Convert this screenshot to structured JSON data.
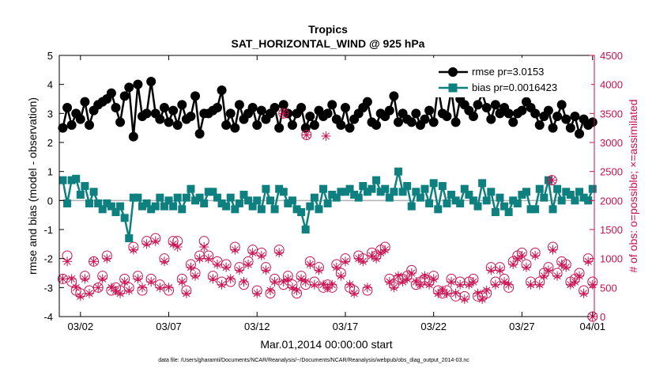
{
  "chart_data": {
    "type": "line",
    "title_line1": "Tropics",
    "title_line2": "SAT_HORIZONTAL_WIND @ 925 hPa",
    "xlabel": "Mar.01,2014 00:00:00 start",
    "ylabel_left": "rmse and bias (model - observation)",
    "ylabel_right": "# of obs: o=possible; ×=assimilated",
    "xlim": [
      0.8,
      31.1
    ],
    "ylim_left": [
      -4,
      5
    ],
    "ylim_right": [
      0,
      4500
    ],
    "x_ticks": [
      2,
      7,
      12,
      17,
      22,
      27,
      31
    ],
    "x_tick_labels": [
      "03/02",
      "03/07",
      "03/12",
      "03/17",
      "03/22",
      "03/27",
      "04/01"
    ],
    "y_left_ticks": [
      -4,
      -3,
      -2,
      -1,
      0,
      1,
      2,
      3,
      4,
      5
    ],
    "y_left_tick_labels": [
      "-4",
      "-3",
      "-2",
      "-1",
      "0",
      "1",
      "2",
      "3",
      "4",
      "5"
    ],
    "y_right_ticks": [
      0,
      500,
      1000,
      1500,
      2000,
      2500,
      3000,
      3500,
      4000,
      4500
    ],
    "y_right_tick_labels": [
      "0",
      "500",
      "1000",
      "1500",
      "2000",
      "2500",
      "3000",
      "3500",
      "4000",
      "4500"
    ],
    "colors": {
      "rmse": "#000000",
      "bias": "#0f8080",
      "obs": "#c8104f",
      "zero": "#b0b0b0"
    },
    "legend": [
      {
        "name": "rmse pr=3.0153",
        "series": "rmse"
      },
      {
        "name": "bias pr=0.0016423",
        "series": "bias"
      }
    ],
    "legend_position": "top-right",
    "footer": "data file: /Users/gharamti/Documents/NCAR/Reanalysis/~/Documents/NCAR/Reanalysis/webpub/obs_diag_output_2014-03.nc",
    "series": [
      {
        "name": "rmse",
        "axis": "left",
        "marker": "circle",
        "x": [
          1.0,
          1.25,
          1.5,
          1.75,
          2.0,
          2.25,
          2.5,
          2.75,
          3.0,
          3.25,
          3.5,
          3.75,
          4.0,
          4.25,
          4.5,
          4.75,
          5.0,
          5.25,
          5.5,
          5.75,
          6.0,
          6.25,
          6.5,
          6.75,
          7.0,
          7.25,
          7.5,
          7.75,
          8.0,
          8.25,
          8.5,
          8.75,
          9.0,
          9.25,
          9.5,
          9.75,
          10.0,
          10.25,
          10.5,
          10.75,
          11.0,
          11.25,
          11.5,
          11.75,
          12.0,
          12.25,
          12.5,
          12.75,
          13.0,
          13.25,
          13.5,
          13.75,
          14.0,
          14.25,
          14.5,
          14.75,
          15.0,
          15.25,
          15.5,
          15.75,
          16.0,
          16.25,
          16.5,
          16.75,
          17.0,
          17.25,
          17.5,
          17.75,
          18.0,
          18.25,
          18.5,
          18.75,
          19.0,
          19.25,
          19.5,
          19.75,
          20.0,
          20.25,
          20.5,
          20.75,
          21.0,
          21.25,
          21.5,
          21.75,
          22.0,
          22.25,
          22.5,
          22.75,
          23.0,
          23.25,
          23.5,
          23.75,
          24.0,
          24.25,
          24.5,
          24.75,
          25.0,
          25.25,
          25.5,
          25.75,
          26.0,
          26.25,
          26.5,
          26.75,
          27.0,
          27.25,
          27.5,
          27.75,
          28.0,
          28.25,
          28.5,
          28.75,
          29.0,
          29.25,
          29.5,
          29.75,
          30.0,
          30.25,
          30.5,
          30.75,
          31.0
        ],
        "values": [
          2.5,
          3.2,
          2.6,
          3.0,
          2.8,
          3.4,
          2.6,
          3.1,
          3.3,
          3.4,
          3.5,
          3.7,
          3.2,
          2.7,
          3.6,
          3.9,
          2.2,
          4.0,
          2.9,
          3.0,
          4.1,
          3.0,
          2.8,
          3.2,
          2.7,
          3.1,
          2.6,
          3.3,
          2.8,
          2.9,
          3.6,
          2.3,
          3.0,
          3.0,
          3.1,
          3.2,
          3.8,
          2.6,
          3.0,
          2.5,
          3.3,
          2.8,
          3.0,
          3.2,
          2.6,
          3.1,
          2.8,
          3.0,
          3.2,
          2.5,
          3.3,
          3.0,
          2.6,
          3.0,
          3.2,
          2.5,
          2.9,
          2.6,
          3.1,
          2.9,
          3.0,
          3.3,
          2.8,
          2.6,
          3.2,
          2.5,
          2.8,
          3.0,
          3.2,
          3.4,
          2.7,
          2.6,
          3.0,
          2.9,
          3.1,
          3.6,
          2.7,
          3.0,
          2.8,
          2.7,
          3.0,
          2.6,
          2.8,
          3.1,
          2.7,
          3.9,
          3.0,
          2.9,
          3.8,
          2.7,
          3.5,
          3.3,
          3.1,
          2.9,
          3.3,
          3.7,
          3.2,
          2.8,
          3.3,
          3.0,
          3.2,
          3.0,
          2.7,
          3.0,
          3.1,
          3.4,
          3.2,
          3.0,
          2.6,
          2.9,
          3.1,
          2.5,
          2.9,
          3.3,
          2.8,
          2.5,
          2.9,
          2.3,
          2.8,
          2.6,
          2.7
        ]
      },
      {
        "name": "bias",
        "axis": "left",
        "marker": "square",
        "x": [
          1.0,
          1.25,
          1.5,
          1.75,
          2.0,
          2.25,
          2.5,
          2.75,
          3.0,
          3.25,
          3.5,
          3.75,
          4.0,
          4.25,
          4.5,
          4.75,
          5.0,
          5.25,
          5.5,
          5.75,
          6.0,
          6.25,
          6.5,
          6.75,
          7.0,
          7.25,
          7.5,
          7.75,
          8.0,
          8.25,
          8.5,
          8.75,
          9.0,
          9.25,
          9.5,
          9.75,
          10.0,
          10.25,
          10.5,
          10.75,
          11.0,
          11.25,
          11.5,
          11.75,
          12.0,
          12.25,
          12.5,
          12.75,
          13.0,
          13.25,
          13.5,
          13.75,
          14.0,
          14.25,
          14.5,
          14.75,
          15.0,
          15.25,
          15.5,
          15.75,
          16.0,
          16.25,
          16.5,
          16.75,
          17.0,
          17.25,
          17.5,
          17.75,
          18.0,
          18.25,
          18.5,
          18.75,
          19.0,
          19.25,
          19.5,
          19.75,
          20.0,
          20.25,
          20.5,
          20.75,
          21.0,
          21.25,
          21.5,
          21.75,
          22.0,
          22.25,
          22.5,
          22.75,
          23.0,
          23.25,
          23.5,
          23.75,
          24.0,
          24.25,
          24.5,
          24.75,
          25.0,
          25.25,
          25.5,
          25.75,
          26.0,
          26.25,
          26.5,
          26.75,
          27.0,
          27.25,
          27.5,
          27.75,
          28.0,
          28.25,
          28.5,
          28.75,
          29.0,
          29.25,
          29.5,
          29.75,
          30.0,
          30.25,
          30.5,
          30.75,
          31.0
        ],
        "values": [
          0.7,
          -0.1,
          0.7,
          0.75,
          0.2,
          0.5,
          -0.1,
          0.3,
          -0.1,
          -0.3,
          -0.1,
          -0.2,
          -0.4,
          -0.2,
          -0.6,
          -1.3,
          0.1,
          0.1,
          -0.2,
          -0.1,
          -0.3,
          -0.2,
          0.1,
          -0.2,
          0.0,
          -0.2,
          0.1,
          -0.3,
          0.1,
          0.4,
          0.0,
          0.1,
          -0.1,
          0.3,
          0.3,
          0.1,
          -0.1,
          -0.2,
          0.1,
          -0.3,
          -0.1,
          0.2,
          0.0,
          -0.2,
          0.0,
          -0.3,
          0.4,
          0.0,
          -0.3,
          0.4,
          0.3,
          -0.1,
          0.0,
          -0.3,
          -0.4,
          -1.0,
          -0.2,
          0.1,
          -0.3,
          0.4,
          -0.1,
          0.2,
          0.1,
          0.3,
          0.3,
          0.4,
          0.2,
          0.1,
          0.5,
          0.3,
          0.4,
          0.7,
          0.3,
          0.4,
          0.1,
          0.3,
          1.0,
          0.3,
          0.5,
          -0.2,
          0.3,
          0.1,
          0.4,
          -0.1,
          0.6,
          -0.3,
          0.5,
          -0.1,
          0.2,
          0.0,
          -0.1,
          0.4,
          0.2,
          0.0,
          -0.2,
          0.6,
          0.0,
          0.3,
          -0.4,
          0.1,
          -0.2,
          -0.4,
          0.0,
          -0.1,
          0.2,
          0.3,
          -0.3,
          -0.3,
          0.4,
          0.1,
          0.7,
          -0.3,
          0.4,
          0.0,
          0.3,
          0.2,
          0.0,
          0.3,
          0.1,
          0.0,
          0.4
        ]
      },
      {
        "name": "possible obs",
        "axis": "right",
        "marker": "open-circle",
        "x": [
          1.0,
          1.25,
          1.5,
          1.75,
          2.0,
          2.25,
          2.5,
          2.75,
          3.0,
          3.25,
          3.5,
          3.75,
          4.0,
          4.25,
          4.5,
          4.75,
          5.0,
          5.25,
          5.5,
          5.75,
          6.0,
          6.25,
          6.5,
          6.75,
          7.0,
          7.25,
          7.5,
          7.75,
          8.0,
          8.25,
          8.5,
          8.75,
          9.0,
          9.25,
          9.5,
          9.75,
          10.0,
          10.25,
          10.5,
          10.75,
          11.0,
          11.25,
          11.5,
          11.75,
          12.0,
          12.25,
          12.5,
          12.75,
          13.0,
          13.25,
          13.5,
          13.75,
          14.0,
          14.25,
          14.5,
          14.75,
          15.0,
          15.25,
          15.5,
          15.75,
          16.0,
          16.25,
          16.5,
          16.75,
          17.0,
          17.25,
          17.5,
          17.75,
          18.0,
          18.25,
          18.5,
          18.75,
          19.0,
          19.25,
          19.5,
          19.75,
          20.0,
          20.25,
          20.5,
          20.75,
          21.0,
          21.25,
          21.5,
          21.75,
          22.0,
          22.25,
          22.5,
          22.75,
          23.0,
          23.25,
          23.5,
          23.75,
          24.0,
          24.25,
          24.5,
          24.75,
          25.0,
          25.25,
          25.5,
          25.75,
          26.0,
          26.25,
          26.5,
          26.75,
          27.0,
          27.25,
          27.5,
          27.75,
          28.0,
          28.25,
          28.5,
          28.75,
          29.0,
          29.25,
          29.5,
          29.75,
          30.0,
          30.25,
          30.5,
          30.75,
          31.0
        ],
        "values": [
          650,
          1050,
          600,
          450,
          400,
          700,
          450,
          950,
          500,
          700,
          1050,
          450,
          500,
          450,
          650,
          500,
          1200,
          700,
          450,
          1300,
          650,
          1350,
          550,
          1000,
          450,
          1300,
          1300,
          650,
          450,
          900,
          750,
          1050,
          1300,
          1050,
          700,
          950,
          600,
          900,
          600,
          1200,
          850,
          550,
          950,
          1150,
          450,
          1100,
          850,
          400,
          650,
          1150,
          550,
          700,
          550,
          400,
          700,
          550,
          950,
          600,
          850,
          500,
          550,
          500,
          900,
          750,
          1000,
          500,
          450,
          1050,
          1000,
          450,
          1100,
          1050,
          1150,
          1200,
          650,
          550,
          650,
          650,
          700,
          800,
          550,
          600,
          650,
          600,
          700,
          450,
          400,
          450,
          650,
          350,
          600,
          350,
          600,
          650,
          350,
          350,
          400,
          850,
          600,
          850,
          650,
          500,
          950,
          1050,
          1100,
          900,
          600,
          1100,
          600,
          750,
          850,
          1200,
          750,
          950,
          900,
          600,
          650,
          750,
          450,
          1000,
          600
        ]
      },
      {
        "name": "assimilated obs",
        "axis": "right",
        "marker": "asterisk",
        "x": [
          1.0,
          1.25,
          1.5,
          1.75,
          2.0,
          2.25,
          2.5,
          2.75,
          3.0,
          3.25,
          3.5,
          3.75,
          4.0,
          4.25,
          4.5,
          4.75,
          5.0,
          5.25,
          5.5,
          5.75,
          6.0,
          6.25,
          6.5,
          6.75,
          7.0,
          7.25,
          7.5,
          7.75,
          8.0,
          8.25,
          8.5,
          8.75,
          9.0,
          9.25,
          9.5,
          9.75,
          10.0,
          10.25,
          10.5,
          10.75,
          11.0,
          11.25,
          11.5,
          11.75,
          12.0,
          12.25,
          12.5,
          12.75,
          13.0,
          13.25,
          13.5,
          13.75,
          14.0,
          14.25,
          14.5,
          14.75,
          15.0,
          15.25,
          15.5,
          15.75,
          16.0,
          16.25,
          16.5,
          16.75,
          17.0,
          17.25,
          17.5,
          17.75,
          18.0,
          18.25,
          18.5,
          18.75,
          19.0,
          19.25,
          19.5,
          19.75,
          20.0,
          20.25,
          20.5,
          20.75,
          21.0,
          21.25,
          21.5,
          21.75,
          22.0,
          22.25,
          22.5,
          22.75,
          23.0,
          23.25,
          23.5,
          23.75,
          24.0,
          24.25,
          24.5,
          24.75,
          25.0,
          25.25,
          25.5,
          25.75,
          26.0,
          26.25,
          26.5,
          26.75,
          27.0,
          27.25,
          27.5,
          27.75,
          28.0,
          28.25,
          28.5,
          28.75,
          29.0,
          29.25,
          29.5,
          29.75,
          30.0,
          30.25,
          30.5,
          30.75,
          31.0
        ],
        "values": [
          650,
          950,
          650,
          500,
          350,
          650,
          400,
          950,
          500,
          650,
          1000,
          500,
          450,
          400,
          600,
          450,
          1150,
          650,
          500,
          1250,
          600,
          1300,
          500,
          950,
          500,
          1250,
          1200,
          600,
          400,
          850,
          700,
          1000,
          1200,
          1000,
          650,
          900,
          550,
          850,
          650,
          1150,
          800,
          600,
          900,
          1100,
          400,
          1050,
          800,
          450,
          600,
          1100,
          600,
          650,
          500,
          450,
          650,
          600,
          900,
          550,
          800,
          550,
          500,
          550,
          850,
          700,
          950,
          550,
          400,
          1000,
          950,
          500,
          1050,
          1000,
          1100,
          1150,
          600,
          500,
          700,
          600,
          650,
          750,
          600,
          550,
          700,
          550,
          650,
          400,
          450,
          400,
          600,
          400,
          550,
          300,
          550,
          600,
          400,
          300,
          450,
          800,
          550,
          800,
          600,
          550,
          900,
          1000,
          1050,
          850,
          550,
          1050,
          550,
          700,
          800,
          1150,
          700,
          900,
          850,
          550,
          600,
          700,
          400,
          950,
          550
        ]
      }
    ],
    "outliers": [
      {
        "x": 13.5,
        "right_value": 3500,
        "marker": "circle-asterisk"
      },
      {
        "x": 14.8,
        "right_value": 3130,
        "marker": "circle-asterisk"
      },
      {
        "x": 15.9,
        "right_value": 3110,
        "marker": "asterisk"
      },
      {
        "x": 28.7,
        "right_value": 2350,
        "marker": "circle-asterisk"
      },
      {
        "x": 31.0,
        "right_value": 0,
        "marker": "circle-asterisk"
      }
    ]
  }
}
